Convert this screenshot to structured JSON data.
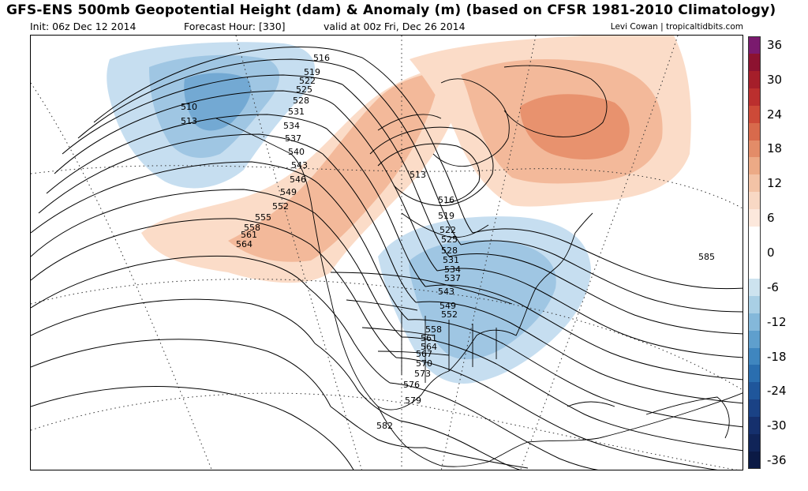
{
  "header": {
    "title": "GFS-ENS 500mb Geopotential Height (dam) & Anomaly (m) (based on CFSR 1981-2010 Climatology)",
    "init": "Init: 06z Dec 12 2014",
    "forecast_hour": "Forecast Hour: [330]",
    "valid": "valid at 00z Fri, Dec 26 2014",
    "credit": "Levi Cowan | tropicaltidbits.com"
  },
  "colorbar": {
    "levels": [
      {
        "label": "36",
        "color": "#7a1a6e"
      },
      {
        "label": "",
        "color": "#8c1230"
      },
      {
        "label": "30",
        "color": "#a51e2a"
      },
      {
        "label": "",
        "color": "#bb2f2e"
      },
      {
        "label": "24",
        "color": "#cd4a38"
      },
      {
        "label": "",
        "color": "#d86a4c"
      },
      {
        "label": "18",
        "color": "#e38c68"
      },
      {
        "label": "",
        "color": "#ecaa86"
      },
      {
        "label": "12",
        "color": "#f3c3a6"
      },
      {
        "label": "",
        "color": "#f8d8c4"
      },
      {
        "label": "6",
        "color": "#fce8dc"
      },
      {
        "label": "",
        "color": "#ffffff"
      },
      {
        "label": "0",
        "color": "#ffffff"
      },
      {
        "label": "",
        "color": "#ffffff"
      },
      {
        "label": "-6",
        "color": "#cde3ef"
      },
      {
        "label": "",
        "color": "#a9cfe5"
      },
      {
        "label": "-12",
        "color": "#84b8da"
      },
      {
        "label": "",
        "color": "#5f9fcd"
      },
      {
        "label": "-18",
        "color": "#3f86bf"
      },
      {
        "label": "",
        "color": "#2a6eaf"
      },
      {
        "label": "-24",
        "color": "#1f569b"
      },
      {
        "label": "",
        "color": "#1a4285"
      },
      {
        "label": "-30",
        "color": "#15306d"
      },
      {
        "label": "",
        "color": "#102458"
      },
      {
        "label": "-36",
        "color": "#0b1a45"
      }
    ]
  },
  "map": {
    "anomaly_colors": {
      "warm_light": "#fbdcc8",
      "warm_mid": "#f3b99a",
      "warm_dark": "#e8926e",
      "cool_light": "#c6def0",
      "cool_mid": "#9fc6e3",
      "cool_dark": "#73a9d3"
    },
    "contour_labels": [
      "510",
      "513",
      "516",
      "519",
      "522",
      "525",
      "528",
      "531",
      "534",
      "537",
      "540",
      "543",
      "546",
      "549",
      "552",
      "555",
      "558",
      "561",
      "564",
      "513",
      "516",
      "519",
      "522",
      "525",
      "528",
      "531",
      "534",
      "537",
      "543",
      "549",
      "552",
      "558",
      "561",
      "564",
      "567",
      "570",
      "573",
      "576",
      "579",
      "582",
      "585"
    ]
  }
}
